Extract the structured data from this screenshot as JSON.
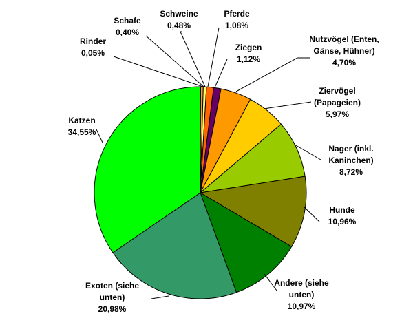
{
  "chart_data": {
    "type": "pie",
    "title": "",
    "start_angle_deg": -90,
    "direction": "clockwise",
    "slices": [
      {
        "label_lines": [
          "Rinder",
          "0,05%"
        ],
        "value": 0.05,
        "color": "#FFFFCC"
      },
      {
        "label_lines": [
          "Schafe",
          "0,40%"
        ],
        "value": 0.4,
        "color": "#FF9933"
      },
      {
        "label_lines": [
          "Schweine",
          "0,48%"
        ],
        "value": 0.48,
        "color": "#FFFF66"
      },
      {
        "label_lines": [
          "Pferde",
          "1,08%"
        ],
        "value": 1.08,
        "color": "#FF6600"
      },
      {
        "label_lines": [
          "Ziegen",
          "1,12%"
        ],
        "value": 1.12,
        "color": "#660066"
      },
      {
        "label_lines": [
          "Nutzvögel (Enten,",
          "Gänse, Hühner)",
          "4,70%"
        ],
        "value": 4.7,
        "color": "#FF9900"
      },
      {
        "label_lines": [
          "Ziervögel",
          "(Papageien)",
          "5,97%"
        ],
        "value": 5.97,
        "color": "#FFCC00"
      },
      {
        "label_lines": [
          "Nager (inkl.",
          "Kaninchen)",
          "8,72%"
        ],
        "value": 8.72,
        "color": "#99CC00"
      },
      {
        "label_lines": [
          "Hunde",
          "10,96%"
        ],
        "value": 10.96,
        "color": "#808000"
      },
      {
        "label_lines": [
          "Andere (siehe",
          "unten)",
          "10,97%"
        ],
        "value": 10.97,
        "color": "#008000"
      },
      {
        "label_lines": [
          "Exoten (siehe",
          "unten)",
          "20,98%"
        ],
        "value": 20.98,
        "color": "#339966"
      },
      {
        "label_lines": [
          "Katzen",
          "34,55%"
        ],
        "value": 34.55,
        "color": "#00FF00"
      }
    ]
  }
}
